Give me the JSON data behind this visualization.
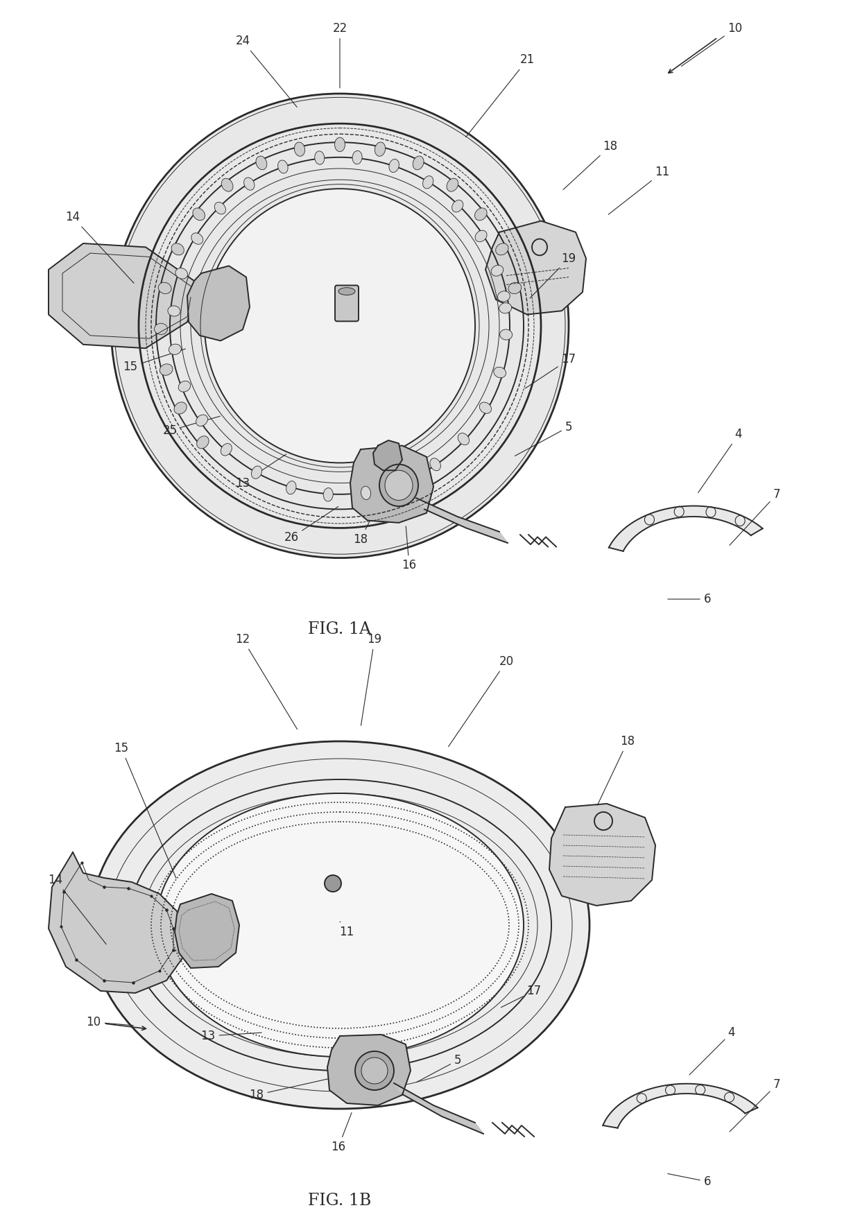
{
  "background_color": "#ffffff",
  "line_color": "#2a2a2a",
  "fig_width": 12.4,
  "fig_height": 17.68,
  "fig1a_label": "FIG. 1A",
  "fig1b_label": "FIG. 1B",
  "label_fontsize": 17,
  "ref_fontsize": 12,
  "lw_main": 1.4,
  "lw_thin": 0.7,
  "lw_thick": 2.0
}
